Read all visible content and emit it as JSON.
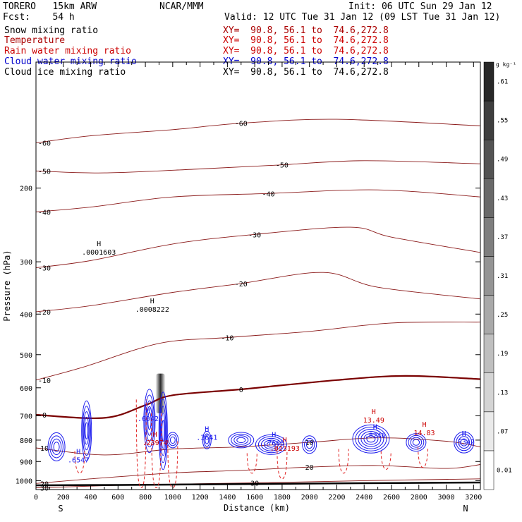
{
  "header": {
    "model": "TORERO   15km ARW",
    "center": "NCAR/MMM",
    "init": "Init: 06 UTC Sun 29 Jan 12",
    "fcst": "Fcst:    54 h",
    "valid": "Valid: 12 UTC Tue 31 Jan 12 (09 LST Tue 31 Jan 12)"
  },
  "fields": [
    {
      "name": "Snow mixing ratio",
      "color": "#000000",
      "xy": "XY=  90.8, 56.1 to  74.6,272.8"
    },
    {
      "name": "Temperature",
      "color": "#aa0000",
      "xy": "XY=  90.8, 56.1 to  74.6,272.8"
    },
    {
      "name": "Rain water mixing ratio",
      "color": "#cc0000",
      "xy": "XY=  90.8, 56.1 to  74.6,272.8"
    },
    {
      "name": "Cloud water mixing ratio",
      "color": "#0000cc",
      "xy": "XY=  90.8, 56.1 to  74.6,272.8"
    },
    {
      "name": "Cloud ice mixing ratio",
      "color": "#000000",
      "xy": "XY=  90.8, 56.1 to  74.6,272.8"
    }
  ],
  "colorbar": {
    "unit": "g kg⁻¹",
    "ticks": [
      "0.01",
      ".07",
      ".13",
      ".19",
      ".25",
      ".31",
      ".37",
      ".43",
      ".49",
      ".55",
      ".61"
    ]
  },
  "chart_data": {
    "type": "contour cross-section",
    "xlabel": "Distance (km)",
    "ylabel": "Pressure (hPa)",
    "x_ticks": [
      0,
      100,
      200,
      300,
      400,
      500,
      600,
      700,
      800,
      900,
      1000,
      1100,
      1200,
      1300,
      1400,
      1500,
      1600,
      1700,
      1800,
      1900,
      2000,
      2100,
      2200,
      2300,
      2400,
      2500,
      2600,
      2700,
      2800,
      2900,
      3000,
      3100,
      3200
    ],
    "xlim": [
      0,
      3250
    ],
    "y_ticks": [
      200,
      300,
      400,
      500,
      600,
      700,
      800,
      900,
      1000
    ],
    "ylim": [
      1050,
      100
    ],
    "y_scale": "log",
    "x_endpoints": {
      "left": "S",
      "right": "N"
    },
    "temperature_contours": [
      {
        "label": "-60",
        "points": [
          [
            0,
            156
          ],
          [
            400,
            150
          ],
          [
            1000,
            145
          ],
          [
            1500,
            140
          ],
          [
            2200,
            137
          ],
          [
            3250,
            142
          ]
        ]
      },
      {
        "label": "-50",
        "points": [
          [
            0,
            182
          ],
          [
            500,
            184
          ],
          [
            1200,
            180
          ],
          [
            1800,
            176
          ],
          [
            2400,
            172
          ],
          [
            3250,
            175
          ]
        ]
      },
      {
        "label": "-40",
        "points": [
          [
            0,
            228
          ],
          [
            400,
            222
          ],
          [
            1000,
            210
          ],
          [
            1700,
            206
          ],
          [
            2500,
            202
          ],
          [
            3250,
            210
          ]
        ]
      },
      {
        "label": "-30",
        "points": [
          [
            0,
            310
          ],
          [
            400,
            298
          ],
          [
            1000,
            272
          ],
          [
            1600,
            258
          ],
          [
            2300,
            248
          ],
          [
            2600,
            262
          ],
          [
            3250,
            285
          ]
        ]
      },
      {
        "label": "-20",
        "points": [
          [
            0,
            395
          ],
          [
            400,
            382
          ],
          [
            1000,
            355
          ],
          [
            1500,
            338
          ],
          [
            2100,
            318
          ],
          [
            2500,
            345
          ],
          [
            3250,
            368
          ]
        ]
      },
      {
        "label": "-10",
        "points": [
          [
            0,
            575
          ],
          [
            350,
            535
          ],
          [
            900,
            470
          ],
          [
            1400,
            455
          ],
          [
            2000,
            440
          ],
          [
            2600,
            420
          ],
          [
            3250,
            418
          ]
        ]
      },
      {
        "label": "0",
        "points": [
          [
            0,
            696
          ],
          [
            500,
            708
          ],
          [
            800,
            660
          ],
          [
            1000,
            625
          ],
          [
            1500,
            605
          ],
          [
            2200,
            575
          ],
          [
            2700,
            562
          ],
          [
            3250,
            572
          ]
        ]
      },
      {
        "label": "10",
        "points": [
          [
            0,
            835
          ],
          [
            500,
            868
          ],
          [
            1000,
            840
          ],
          [
            1500,
            830
          ],
          [
            2000,
            810
          ],
          [
            2500,
            790
          ],
          [
            3000,
            805
          ],
          [
            3250,
            830
          ]
        ]
      },
      {
        "label": "20",
        "points": [
          [
            0,
            1015
          ],
          [
            400,
            990
          ],
          [
            1000,
            958
          ],
          [
            1500,
            945
          ],
          [
            2000,
            928
          ],
          [
            2500,
            920
          ],
          [
            3000,
            935
          ],
          [
            3250,
            915
          ]
        ]
      },
      {
        "label": "30",
        "points": [
          [
            0,
            1040
          ],
          [
            800,
            1022
          ],
          [
            1600,
            1012
          ],
          [
            2400,
            1000
          ],
          [
            3250,
            990
          ]
        ]
      }
    ],
    "maxima_labels": [
      {
        "field": "snow",
        "label": ".0001603",
        "x": 460,
        "p": 285
      },
      {
        "field": "snow",
        "label": ".0008222",
        "x": 850,
        "p": 390
      },
      {
        "field": "cloud_water",
        "label": ".6042",
        "x": 820,
        "p": 712
      },
      {
        "field": "cloud_water",
        "label": ".3641",
        "x": 1250,
        "p": 790
      },
      {
        "field": "cloud_water",
        "label": ".7665",
        "x": 1740,
        "p": 815
      },
      {
        "field": "cloud_water",
        "label": ".8246",
        "x": 2480,
        "p": 780
      },
      {
        "field": "cloud_water",
        "label": ".5342",
        "x": 3130,
        "p": 810
      },
      {
        "field": "cloud_water",
        "label": ".6547",
        "x": 310,
        "p": 893
      },
      {
        "field": "rain",
        "label": "13.49",
        "x": 2470,
        "p": 718
      },
      {
        "field": "rain",
        "label": "14.83",
        "x": 2840,
        "p": 770
      },
      {
        "field": "rain",
        "label": ".23974",
        "x": 870,
        "p": 812
      },
      {
        "field": "rain",
        "label": ".023193",
        "x": 1820,
        "p": 838
      }
    ],
    "terrain_surface_hPa": [
      [
        0,
        1026
      ],
      [
        1000,
        1022
      ],
      [
        2000,
        1016
      ],
      [
        3250,
        1010
      ]
    ]
  }
}
